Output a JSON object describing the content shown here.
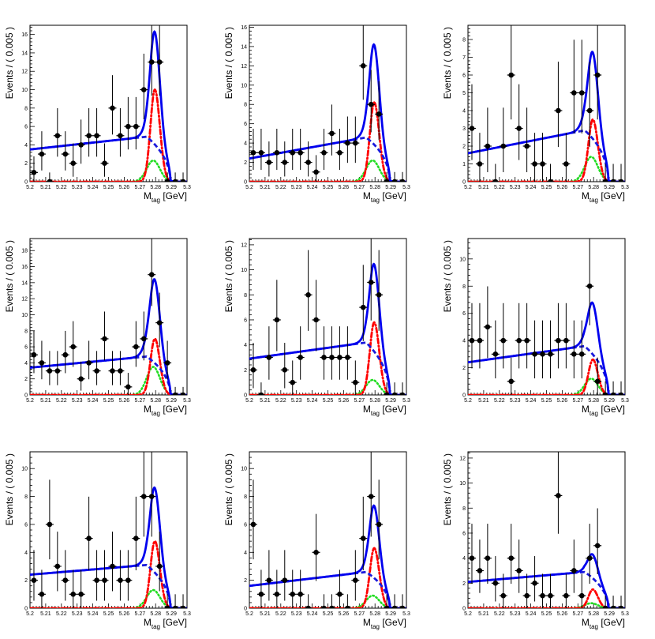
{
  "colors": {
    "total_fit": "#0000ee",
    "background": "#1a1adc",
    "signal": "#ff0000",
    "peaking": "#22dd22",
    "data": "#000000"
  },
  "chart_data": [
    {
      "type": "scatter",
      "panel": "row1-col1",
      "xlabel": "M",
      "xlabel_sub": "tag",
      "xlabel_unit": "[GeV]",
      "ylabel": "Events / ( 0.005 )",
      "xlim": [
        5.2,
        5.3
      ],
      "ylim": [
        0,
        17
      ],
      "yticks": [
        0,
        2,
        4,
        6,
        8,
        10,
        12,
        14,
        16
      ],
      "xticks": [
        "5.2",
        "5.21",
        "5.22",
        "5.23",
        "5.24",
        "5.25",
        "5.26",
        "5.27",
        "5.28",
        "5.29",
        "5.3"
      ],
      "points": {
        "x": [
          5.2025,
          5.2075,
          5.2125,
          5.2175,
          5.2225,
          5.2275,
          5.2325,
          5.2375,
          5.2425,
          5.2475,
          5.2525,
          5.2575,
          5.2625,
          5.2675,
          5.2725,
          5.2775,
          5.2825,
          5.2875,
          5.2925,
          5.2975
        ],
        "y": [
          1,
          3,
          0,
          5,
          3,
          2,
          4,
          5,
          5,
          2,
          8,
          5,
          6,
          6,
          10,
          13,
          13,
          0,
          0,
          0
        ]
      },
      "curves": {
        "total": {
          "bkg_start": 3.5,
          "bkg_end": 4.9,
          "sig_peak": 10.0,
          "peak_peak": 2.3
        },
        "background": {
          "start": 3.5,
          "end": 4.9
        },
        "signal": {
          "peak": 10.0
        },
        "peaking": {
          "peak": 2.3
        }
      }
    },
    {
      "type": "scatter",
      "panel": "row1-col2",
      "xlabel": "M",
      "xlabel_sub": "tag",
      "xlabel_unit": "[GeV]",
      "ylabel": "Events / ( 0.005 )",
      "xlim": [
        5.2,
        5.3
      ],
      "ylim": [
        0,
        16.2
      ],
      "yticks": [
        0,
        2,
        4,
        6,
        8,
        10,
        12,
        14,
        16
      ],
      "xticks": [
        "5.2",
        "5.21",
        "5.22",
        "5.23",
        "5.24",
        "5.25",
        "5.26",
        "5.27",
        "5.28",
        "5.29",
        "5.3"
      ],
      "points": {
        "x": [
          5.2025,
          5.2075,
          5.2125,
          5.2175,
          5.2225,
          5.2275,
          5.2325,
          5.2375,
          5.2425,
          5.2475,
          5.2525,
          5.2575,
          5.2625,
          5.2675,
          5.2725,
          5.2775,
          5.2825,
          5.2875,
          5.2925,
          5.2975
        ],
        "y": [
          3,
          3,
          2,
          3,
          2,
          3,
          3,
          2,
          1,
          3,
          5,
          3,
          4,
          4,
          12,
          8,
          7,
          0,
          0,
          0
        ]
      },
      "curves": {
        "total": {
          "bkg_start": 2.4,
          "bkg_end": 4.6,
          "sig_peak": 8.2,
          "peak_peak": 2.2
        },
        "background": {
          "start": 2.4,
          "end": 4.6
        },
        "signal": {
          "peak": 8.2
        },
        "peaking": {
          "peak": 2.2
        }
      }
    },
    {
      "type": "scatter",
      "panel": "row1-col3",
      "xlabel": "M",
      "xlabel_sub": "tag",
      "xlabel_unit": "[GeV]",
      "ylabel": "Events / ( 0.005 )",
      "xlim": [
        5.2,
        5.3
      ],
      "ylim": [
        0,
        8.8
      ],
      "yticks": [
        0,
        1,
        2,
        3,
        4,
        5,
        6,
        7,
        8
      ],
      "xticks": [
        "5.2",
        "5.21",
        "5.22",
        "5.23",
        "5.24",
        "5.25",
        "5.26",
        "5.27",
        "5.28",
        "5.29",
        "5.3"
      ],
      "points": {
        "x": [
          5.2025,
          5.2075,
          5.2125,
          5.2175,
          5.2225,
          5.2275,
          5.2325,
          5.2375,
          5.2425,
          5.2475,
          5.2525,
          5.2575,
          5.2625,
          5.2675,
          5.2725,
          5.2775,
          5.2825,
          5.2875,
          5.2925,
          5.2975
        ],
        "y": [
          3,
          1,
          2,
          0,
          2,
          6,
          3,
          2,
          1,
          1,
          0,
          4,
          1,
          5,
          5,
          4,
          6,
          0,
          0,
          0
        ]
      },
      "curves": {
        "total": {
          "bkg_start": 1.6,
          "bkg_end": 2.9,
          "sig_peak": 3.5,
          "peak_peak": 1.4
        },
        "background": {
          "start": 1.6,
          "end": 2.9
        },
        "signal": {
          "peak": 3.5
        },
        "peaking": {
          "peak": 1.4
        }
      }
    },
    {
      "type": "scatter",
      "panel": "row2-col1",
      "xlabel": "M",
      "xlabel_sub": "tag",
      "xlabel_unit": "[GeV]",
      "ylabel": "Events / ( 0.005 )",
      "xlim": [
        5.2,
        5.3
      ],
      "ylim": [
        0,
        19.5
      ],
      "yticks": [
        0,
        2,
        4,
        6,
        8,
        10,
        12,
        14,
        16,
        18
      ],
      "xticks": [
        "5.2",
        "5.21",
        "5.22",
        "5.23",
        "5.24",
        "5.25",
        "5.26",
        "5.27",
        "5.28",
        "5.29",
        "5.3"
      ],
      "points": {
        "x": [
          5.2025,
          5.2075,
          5.2125,
          5.2175,
          5.2225,
          5.2275,
          5.2325,
          5.2375,
          5.2425,
          5.2475,
          5.2525,
          5.2575,
          5.2625,
          5.2675,
          5.2725,
          5.2775,
          5.2825,
          5.2875,
          5.2925,
          5.2975
        ],
        "y": [
          5,
          4,
          3,
          3,
          5,
          6,
          2,
          4,
          3,
          7,
          3,
          3,
          1,
          6,
          7,
          15,
          9,
          4,
          0,
          0
        ]
      },
      "curves": {
        "total": {
          "bkg_start": 3.4,
          "bkg_end": 4.8,
          "sig_peak": 7.0,
          "peak_peak": 3.5
        },
        "background": {
          "start": 3.4,
          "end": 4.8
        },
        "signal": {
          "peak": 7.0
        },
        "peaking": {
          "peak": 3.5
        }
      }
    },
    {
      "type": "scatter",
      "panel": "row2-col2",
      "xlabel": "M",
      "xlabel_sub": "tag",
      "xlabel_unit": "[GeV]",
      "ylabel": "Events / ( 0.005 )",
      "xlim": [
        5.2,
        5.3
      ],
      "ylim": [
        0,
        12.5
      ],
      "yticks": [
        0,
        2,
        4,
        6,
        8,
        10,
        12
      ],
      "xticks": [
        "5.2",
        "5.21",
        "5.22",
        "5.23",
        "5.24",
        "5.25",
        "5.26",
        "5.27",
        "5.28",
        "5.29",
        "5.3"
      ],
      "points": {
        "x": [
          5.2025,
          5.2075,
          5.2125,
          5.2175,
          5.2225,
          5.2275,
          5.2325,
          5.2375,
          5.2425,
          5.2475,
          5.2525,
          5.2575,
          5.2625,
          5.2675,
          5.2725,
          5.2775,
          5.2825,
          5.2875,
          5.2925,
          5.2975
        ],
        "y": [
          2,
          0,
          3,
          6,
          2,
          1,
          3,
          8,
          6,
          3,
          3,
          3,
          3,
          1,
          7,
          9,
          8,
          0,
          0,
          0
        ]
      },
      "curves": {
        "total": {
          "bkg_start": 2.9,
          "bkg_end": 4.2,
          "sig_peak": 5.8,
          "peak_peak": 1.2
        },
        "background": {
          "start": 2.9,
          "end": 4.2
        },
        "signal": {
          "peak": 5.8
        },
        "peaking": {
          "peak": 1.2
        }
      }
    },
    {
      "type": "scatter",
      "panel": "row2-col3",
      "xlabel": "M",
      "xlabel_sub": "tag",
      "xlabel_unit": "[GeV]",
      "ylabel": "Events / ( 0.005 )",
      "xlim": [
        5.2,
        5.3
      ],
      "ylim": [
        0,
        11.5
      ],
      "yticks": [
        0,
        2,
        4,
        6,
        8,
        10
      ],
      "xticks": [
        "5.2",
        "5.21",
        "5.22",
        "5.23",
        "5.24",
        "5.25",
        "5.26",
        "5.27",
        "5.28",
        "5.29",
        "5.3"
      ],
      "points": {
        "x": [
          5.2025,
          5.2075,
          5.2125,
          5.2175,
          5.2225,
          5.2275,
          5.2325,
          5.2375,
          5.2425,
          5.2475,
          5.2525,
          5.2575,
          5.2625,
          5.2675,
          5.2725,
          5.2775,
          5.2825,
          5.2875,
          5.2925,
          5.2975
        ],
        "y": [
          4,
          4,
          5,
          3,
          4,
          1,
          4,
          4,
          3,
          3,
          3,
          4,
          4,
          3,
          3,
          8,
          1,
          0,
          0,
          0
        ]
      },
      "curves": {
        "total": {
          "bkg_start": 2.4,
          "bkg_end": 3.6,
          "sig_peak": 2.6,
          "peak_peak": 1.2
        },
        "background": {
          "start": 2.4,
          "end": 3.6
        },
        "signal": {
          "peak": 2.6
        },
        "peaking": {
          "peak": 1.2
        }
      }
    },
    {
      "type": "scatter",
      "panel": "row3-col1",
      "xlabel": "M",
      "xlabel_sub": "tag",
      "xlabel_unit": "[GeV]",
      "ylabel": "Events / ( 0.005 )",
      "xlim": [
        5.2,
        5.3
      ],
      "ylim": [
        0,
        11.2
      ],
      "yticks": [
        0,
        2,
        4,
        6,
        8,
        10
      ],
      "xticks": [
        "5.2",
        "5.21",
        "5.22",
        "5.23",
        "5.24",
        "5.25",
        "5.26",
        "5.27",
        "5.28",
        "5.29",
        "5.3"
      ],
      "points": {
        "x": [
          5.2025,
          5.2075,
          5.2125,
          5.2175,
          5.2225,
          5.2275,
          5.2325,
          5.2375,
          5.2425,
          5.2475,
          5.2525,
          5.2575,
          5.2625,
          5.2675,
          5.2725,
          5.2775,
          5.2825,
          5.2875,
          5.2925,
          5.2975
        ],
        "y": [
          2,
          1,
          6,
          3,
          2,
          1,
          1,
          5,
          2,
          2,
          3,
          2,
          2,
          5,
          8,
          8,
          3,
          0,
          0,
          0
        ]
      },
      "curves": {
        "total": {
          "bkg_start": 2.4,
          "bkg_end": 3.1,
          "sig_peak": 4.8,
          "peak_peak": 1.3
        },
        "background": {
          "start": 2.4,
          "end": 3.1
        },
        "signal": {
          "peak": 4.8
        },
        "peaking": {
          "peak": 1.3
        }
      }
    },
    {
      "type": "scatter",
      "panel": "row3-col2",
      "xlabel": "M",
      "xlabel_sub": "tag",
      "xlabel_unit": "[GeV]",
      "ylabel": "Events / ( 0.005 )",
      "xlim": [
        5.2,
        5.3
      ],
      "ylim": [
        0,
        11.2
      ],
      "yticks": [
        0,
        2,
        4,
        6,
        8,
        10
      ],
      "xticks": [
        "5.2",
        "5.21",
        "5.22",
        "5.23",
        "5.24",
        "5.25",
        "5.26",
        "5.27",
        "5.28",
        "5.29",
        "5.3"
      ],
      "points": {
        "x": [
          5.2025,
          5.2075,
          5.2125,
          5.2175,
          5.2225,
          5.2275,
          5.2325,
          5.2375,
          5.2425,
          5.2475,
          5.2525,
          5.2575,
          5.2625,
          5.2675,
          5.2725,
          5.2775,
          5.2825,
          5.2875,
          5.2925,
          5.2975
        ],
        "y": [
          6,
          1,
          2,
          1,
          2,
          1,
          1,
          0,
          4,
          0,
          0,
          1,
          0,
          2,
          5,
          8,
          6,
          0,
          0,
          0
        ]
      },
      "curves": {
        "total": {
          "bkg_start": 1.6,
          "bkg_end": 2.6,
          "sig_peak": 4.3,
          "peak_peak": 0.9
        },
        "background": {
          "start": 1.6,
          "end": 2.6
        },
        "signal": {
          "peak": 4.3
        },
        "peaking": {
          "peak": 0.9
        }
      }
    },
    {
      "type": "scatter",
      "panel": "row3-col3",
      "xlabel": "M",
      "xlabel_sub": "tag",
      "xlabel_unit": "[GeV]",
      "ylabel": "Events / ( 0.005 )",
      "xlim": [
        5.2,
        5.3
      ],
      "ylim": [
        0,
        12.5
      ],
      "yticks": [
        0,
        2,
        4,
        6,
        8,
        10,
        12
      ],
      "xticks": [
        "5.2",
        "5.21",
        "5.22",
        "5.23",
        "5.24",
        "5.25",
        "5.26",
        "5.27",
        "5.28",
        "5.29",
        "5.3"
      ],
      "points": {
        "x": [
          5.2025,
          5.2075,
          5.2125,
          5.2175,
          5.2225,
          5.2275,
          5.2325,
          5.2375,
          5.2425,
          5.2475,
          5.2525,
          5.2575,
          5.2625,
          5.2675,
          5.2725,
          5.2775,
          5.2825,
          5.2875,
          5.2925,
          5.2975
        ],
        "y": [
          4,
          3,
          4,
          2,
          1,
          4,
          3,
          1,
          2,
          1,
          1,
          9,
          1,
          3,
          1,
          4,
          5,
          0,
          0,
          0
        ]
      },
      "curves": {
        "total": {
          "bkg_start": 2.1,
          "bkg_end": 2.9,
          "sig_peak": 1.5,
          "peak_peak": 0.4
        },
        "background": {
          "start": 2.1,
          "end": 2.9
        },
        "signal": {
          "peak": 1.5
        },
        "peaking": {
          "peak": 0.4
        }
      }
    }
  ]
}
